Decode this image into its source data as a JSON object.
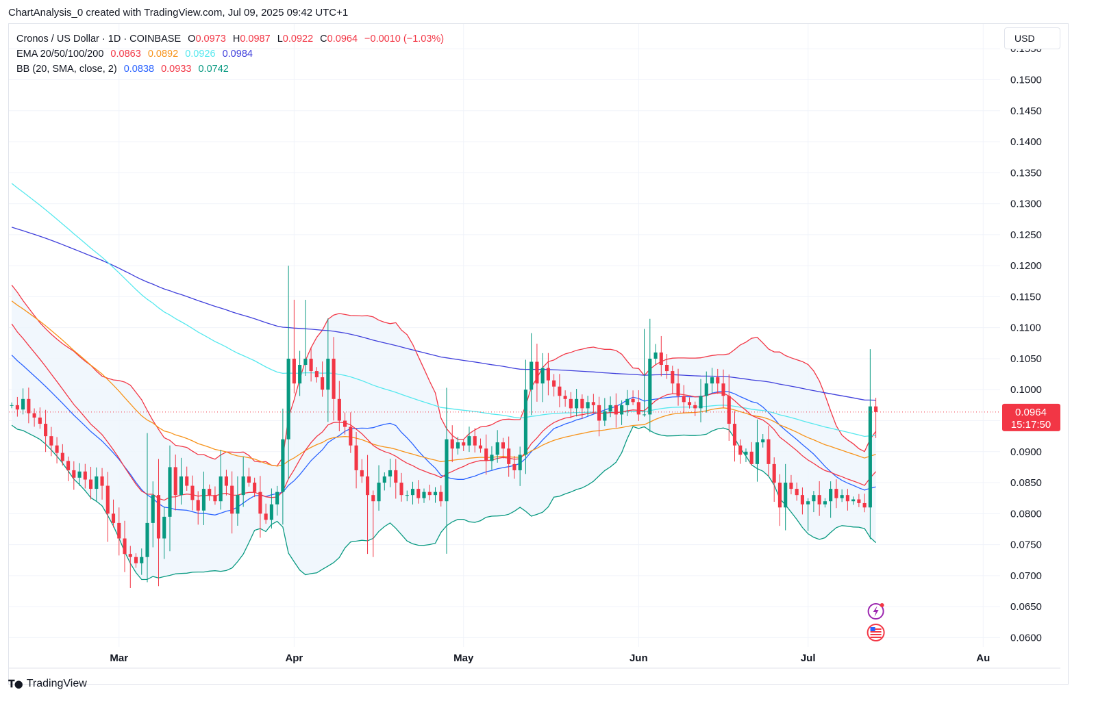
{
  "header": {
    "title": "ChartAnalysis_0 created with TradingView.com, Jul 09, 2025 09:42 UTC+1"
  },
  "legend": {
    "symbol": "Cronos / US Dollar · 1D · COINBASE",
    "ohlc": {
      "o_label": "O",
      "o_value": "0.0973",
      "h_label": "H",
      "h_value": "0.0987",
      "l_label": "L",
      "l_value": "0.0922",
      "c_label": "C",
      "c_value": "0.0964",
      "change": "−0.0010 (−1.03%)"
    },
    "ema": {
      "label": "EMA 20/50/100/200",
      "values": [
        "0.0863",
        "0.0892",
        "0.0926",
        "0.0984"
      ]
    },
    "bb": {
      "label": "BB (20, SMA, close, 2)",
      "values": [
        "0.0838",
        "0.0933",
        "0.0742"
      ]
    }
  },
  "currency": "USD",
  "price_tag": {
    "price": "0.0964",
    "countdown": "15:17:50"
  },
  "footer": {
    "brand": "TradingView"
  },
  "colors": {
    "up": "#089981",
    "down": "#f23645",
    "ema20": "#f23645",
    "ema50": "#f7931a",
    "ema100": "#55e8ee",
    "ema200": "#3f3fdb",
    "bb_basis": "#2962ff",
    "bb_upper": "#f23645",
    "bb_lower": "#089981",
    "bb_fill": "#eef5fc"
  },
  "chart_data": {
    "type": "candlestick",
    "y_ticks": [
      "0.1550",
      "0.1500",
      "0.1450",
      "0.1400",
      "0.1350",
      "0.1300",
      "0.1250",
      "0.1200",
      "0.1150",
      "0.1100",
      "0.1050",
      "0.1000",
      "0.0950",
      "0.0900",
      "0.0850",
      "0.0800",
      "0.0750",
      "0.0700",
      "0.0650",
      "0.0600"
    ],
    "ylim": [
      0.0585,
      0.159
    ],
    "x_ticks": [
      {
        "label": "Mar",
        "day": 19
      },
      {
        "label": "Apr",
        "day": 50
      },
      {
        "label": "May",
        "day": 80
      },
      {
        "label": "Jun",
        "day": 111
      },
      {
        "label": "Jul",
        "day": 141
      },
      {
        "label": "Au",
        "day": 172
      }
    ],
    "x_domain_days": [
      -0.5,
      175
    ],
    "last_close": 0.0964,
    "ohlc_day0_open": 0.0975,
    "closes": [
      0.0975,
      0.0968,
      0.0985,
      0.0962,
      0.0955,
      0.0945,
      0.0925,
      0.091,
      0.0898,
      0.0885,
      0.087,
      0.0858,
      0.0868,
      0.0855,
      0.084,
      0.086,
      0.0845,
      0.08,
      0.0785,
      0.076,
      0.0735,
      0.073,
      0.072,
      0.073,
      0.0785,
      0.083,
      0.076,
      0.0795,
      0.0875,
      0.083,
      0.086,
      0.0845,
      0.0822,
      0.0805,
      0.084,
      0.083,
      0.082,
      0.086,
      0.0845,
      0.08,
      0.083,
      0.086,
      0.085,
      0.0835,
      0.08,
      0.079,
      0.0815,
      0.0835,
      0.092,
      0.105,
      0.101,
      0.104,
      0.105,
      0.103,
      0.102,
      0.1,
      0.105,
      0.0985,
      0.095,
      0.094,
      0.091,
      0.087,
      0.086,
      0.083,
      0.082,
      0.085,
      0.086,
      0.087,
      0.085,
      0.083,
      0.083,
      0.084,
      0.0825,
      0.0835,
      0.083,
      0.0835,
      0.082,
      0.092,
      0.0905,
      0.0915,
      0.091,
      0.0925,
      0.091,
      0.0905,
      0.0885,
      0.0895,
      0.0915,
      0.0905,
      0.088,
      0.087,
      0.0895,
      0.1,
      0.1045,
      0.101,
      0.1035,
      0.1015,
      0.1005,
      0.099,
      0.0985,
      0.097,
      0.0985,
      0.097,
      0.098,
      0.0975,
      0.095,
      0.0965,
      0.0975,
      0.096,
      0.0975,
      0.0985,
      0.098,
      0.096,
      0.096,
      0.105,
      0.106,
      0.104,
      0.103,
      0.101,
      0.099,
      0.098,
      0.0975,
      0.097,
      0.099,
      0.101,
      0.102,
      0.101,
      0.099,
      0.0945,
      0.091,
      0.0895,
      0.09,
      0.088,
      0.0915,
      0.092,
      0.088,
      0.085,
      0.081,
      0.085,
      0.084,
      0.083,
      0.0815,
      0.082,
      0.083,
      0.0815,
      0.082,
      0.084,
      0.0825,
      0.083,
      0.082,
      0.0823,
      0.0817,
      0.081,
      0.0973,
      0.0964
    ]
  }
}
